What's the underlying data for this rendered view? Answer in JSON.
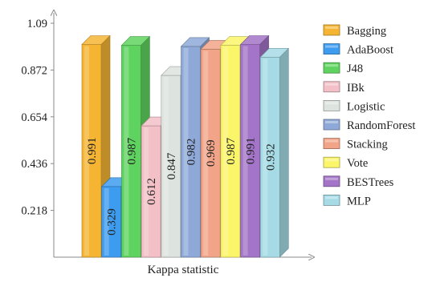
{
  "chart_data": {
    "type": "bar",
    "title": "",
    "xlabel": "Kappa statistic",
    "ylabel": "",
    "ylim": [
      0,
      1.2
    ],
    "yticks": [
      0.218,
      0.436,
      0.654,
      0.872,
      1.09
    ],
    "yticks_text": [
      "0.218",
      "0.436",
      "0.654",
      "0.872",
      "1.09"
    ],
    "grid": false,
    "legend_position": "right",
    "style": "3d",
    "series": [
      {
        "name": "Bagging",
        "value": 0.991,
        "label": "0.991",
        "color": "#f5b533"
      },
      {
        "name": "AdaBoost",
        "value": 0.329,
        "label": "0.329",
        "color": "#3d9cf0"
      },
      {
        "name": "J48",
        "value": 0.987,
        "label": "0.987",
        "color": "#5fd35f"
      },
      {
        "name": "IBk",
        "value": 0.612,
        "label": "0.612",
        "color": "#f2c0c6"
      },
      {
        "name": "Logistic",
        "value": 0.847,
        "label": "0.847",
        "color": "#dde3df"
      },
      {
        "name": "RandomForest",
        "value": 0.982,
        "label": "0.982",
        "color": "#8ea9d8"
      },
      {
        "name": "Stacking",
        "value": 0.969,
        "label": "0.969",
        "color": "#f2a488"
      },
      {
        "name": "Vote",
        "value": 0.987,
        "label": "0.987",
        "color": "#fbf56a"
      },
      {
        "name": "BESTrees",
        "value": 0.991,
        "label": "0.991",
        "color": "#a374c7"
      },
      {
        "name": "MLP",
        "value": 0.932,
        "label": "0.932",
        "color": "#a6dbe6"
      }
    ]
  }
}
